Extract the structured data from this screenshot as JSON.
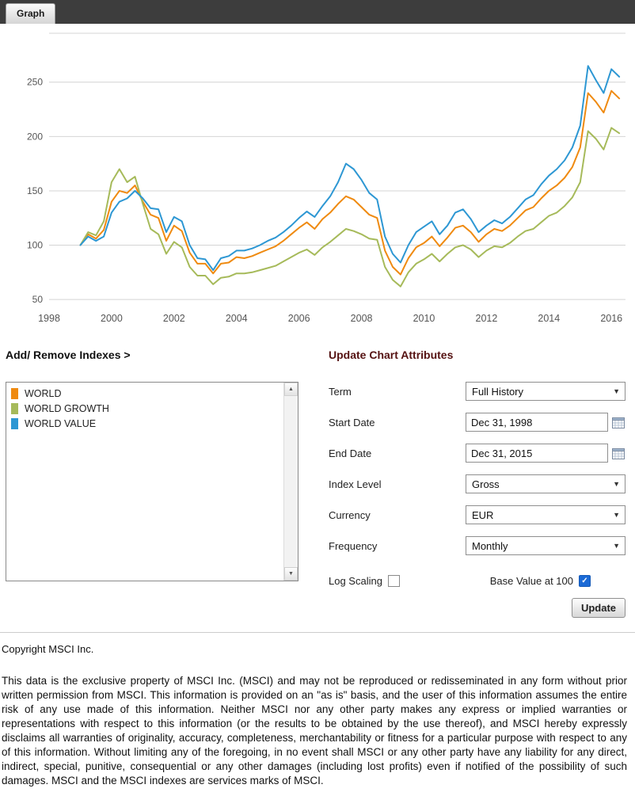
{
  "header": {
    "tab_label": "Graph"
  },
  "chart_data": {
    "type": "line",
    "title": "",
    "xlabel": "",
    "ylabel": "",
    "grid": "horizontal",
    "legend_position": "none",
    "x_ticks": [
      1998,
      2000,
      2002,
      2004,
      2006,
      2008,
      2010,
      2012,
      2014,
      2016
    ],
    "y_ticks": [
      50,
      100,
      150,
      200,
      250
    ],
    "xlim": [
      1998,
      2016.45
    ],
    "ylim": [
      45,
      295
    ],
    "x": [
      1999,
      1999.25,
      1999.5,
      1999.75,
      2000,
      2000.25,
      2000.5,
      2000.75,
      2001,
      2001.25,
      2001.5,
      2001.75,
      2002,
      2002.25,
      2002.5,
      2002.75,
      2003,
      2003.25,
      2003.5,
      2003.75,
      2004,
      2004.25,
      2004.5,
      2004.75,
      2005,
      2005.25,
      2005.5,
      2005.75,
      2006,
      2006.25,
      2006.5,
      2006.75,
      2007,
      2007.25,
      2007.5,
      2007.75,
      2008,
      2008.25,
      2008.5,
      2008.75,
      2009,
      2009.25,
      2009.5,
      2009.75,
      2010,
      2010.25,
      2010.5,
      2010.75,
      2011,
      2011.25,
      2011.5,
      2011.75,
      2012,
      2012.25,
      2012.5,
      2012.75,
      2013,
      2013.25,
      2013.5,
      2013.75,
      2014,
      2014.25,
      2014.5,
      2014.75,
      2015,
      2015.25,
      2015.5,
      2015.75,
      2016,
      2016.25
    ],
    "series": [
      {
        "name": "WORLD",
        "color": "#ef8a10",
        "values": [
          100,
          110,
          106,
          114,
          140,
          150,
          148,
          155,
          140,
          128,
          125,
          104,
          118,
          113,
          93,
          83,
          83,
          74,
          83,
          84,
          89,
          88,
          90,
          93,
          96,
          99,
          104,
          110,
          116,
          121,
          115,
          124,
          130,
          138,
          145,
          142,
          135,
          128,
          125,
          95,
          80,
          73,
          88,
          98,
          102,
          108,
          99,
          107,
          116,
          118,
          112,
          103,
          110,
          115,
          113,
          118,
          125,
          132,
          135,
          143,
          150,
          155,
          162,
          172,
          190,
          240,
          232,
          222,
          242,
          235
        ]
      },
      {
        "name": "WORLD GROWTH",
        "color": "#a6ba5a",
        "values": [
          100,
          112,
          109,
          122,
          158,
          170,
          158,
          163,
          138,
          115,
          110,
          92,
          103,
          98,
          80,
          72,
          72,
          64,
          70,
          71,
          74,
          74,
          75,
          77,
          79,
          81,
          85,
          89,
          93,
          96,
          91,
          98,
          103,
          109,
          115,
          113,
          110,
          106,
          105,
          80,
          68,
          62,
          75,
          83,
          87,
          92,
          85,
          92,
          98,
          100,
          96,
          89,
          95,
          99,
          98,
          102,
          108,
          113,
          115,
          121,
          127,
          130,
          136,
          144,
          158,
          205,
          198,
          188,
          208,
          203
        ]
      },
      {
        "name": "WORLD VALUE",
        "color": "#2d97d3",
        "values": [
          100,
          108,
          104,
          108,
          130,
          140,
          143,
          150,
          143,
          134,
          133,
          112,
          126,
          122,
          100,
          88,
          87,
          77,
          88,
          90,
          95,
          95,
          97,
          100,
          104,
          107,
          112,
          118,
          125,
          131,
          126,
          136,
          145,
          158,
          175,
          170,
          160,
          148,
          142,
          108,
          92,
          84,
          100,
          112,
          117,
          122,
          110,
          118,
          130,
          133,
          124,
          112,
          118,
          123,
          120,
          126,
          134,
          142,
          146,
          156,
          164,
          170,
          178,
          190,
          210,
          265,
          252,
          240,
          262,
          255
        ]
      }
    ]
  },
  "indexes_panel": {
    "title": "Add/ Remove Indexes >",
    "items": [
      {
        "label": "WORLD",
        "color": "#ef8a10"
      },
      {
        "label": "WORLD GROWTH",
        "color": "#a6ba5a"
      },
      {
        "label": "WORLD VALUE",
        "color": "#2d97d3"
      }
    ],
    "scroll_up_icon": "▲",
    "scroll_down_icon": "▼"
  },
  "attributes_panel": {
    "title": "Update Chart Attributes",
    "term": {
      "label": "Term",
      "value": "Full History"
    },
    "start_date": {
      "label": "Start Date",
      "value": "Dec 31, 1998"
    },
    "end_date": {
      "label": "End Date",
      "value": "Dec 31, 2015"
    },
    "index_level": {
      "label": "Index Level",
      "value": "Gross"
    },
    "currency": {
      "label": "Currency",
      "value": "EUR"
    },
    "frequency": {
      "label": "Frequency",
      "value": "Monthly"
    },
    "log_scaling": {
      "label": "Log Scaling",
      "checked": false
    },
    "base_value": {
      "label": "Base Value at 100",
      "checked": true
    },
    "update_button": "Update",
    "chevron_icon": "▼",
    "check_glyph": "✓"
  },
  "footer": {
    "copyright": "Copyright MSCI Inc.",
    "disclaimer": "This data is the exclusive property of MSCI Inc. (MSCI) and may not be reproduced or redisseminated in any form without prior written permission from MSCI. This information is provided on an \"as is\" basis, and the user of this information assumes the entire risk of any use made of this information. Neither MSCI nor any other party makes any express or implied warranties or representations with respect to this information (or the results to be obtained by the use thereof), and MSCI hereby expressly disclaims all warranties of originality, accuracy, completeness, merchantability or fitness for a particular purpose with respect to any of this information. Without limiting any of the foregoing, in no event shall MSCI or any other party have any liability for any direct, indirect, special, punitive, consequential or any other damages (including lost profits) even if notified of the possibility of such damages. MSCI and the MSCI indexes are services marks of MSCI."
  }
}
